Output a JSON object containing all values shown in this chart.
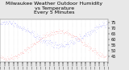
{
  "title": "Milwaukee Weather Outdoor Humidity\nvs Temperature\nEvery 5 Minutes",
  "title_fontsize": 4.5,
  "background_color": "#e8e8e8",
  "plot_bg_color": "#ffffff",
  "grid_color": "#cccccc",
  "red_color": "#ff0000",
  "blue_color": "#0000ff",
  "ylim": [
    40,
    78
  ],
  "xlim": [
    0,
    288
  ],
  "num_points": 288,
  "seed": 42
}
